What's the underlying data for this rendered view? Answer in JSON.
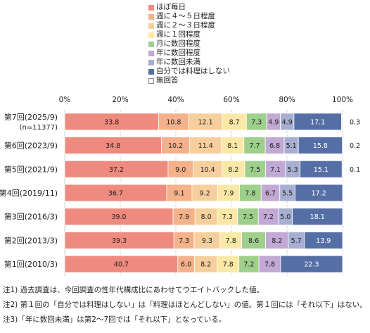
{
  "chart_data": {
    "type": "bar",
    "orientation": "horizontal",
    "stacked": true,
    "categories": [
      "第7回(2025/9)",
      "第6回(2023/9)",
      "第5回(2021/9)",
      "第4回(2019/11)",
      "第3回(2016/3)",
      "第2回(2013/3)",
      "第1回(2010/3)"
    ],
    "category_sublabels": [
      "(n=11377)",
      "",
      "",
      "",
      "",
      "",
      ""
    ],
    "series": [
      {
        "name": "ほぼ毎日",
        "color": "#ef8a7e",
        "values": [
          33.8,
          34.8,
          37.2,
          36.7,
          39.0,
          39.3,
          40.7
        ]
      },
      {
        "name": "週に４～５日程度",
        "color": "#f4b18a",
        "values": [
          10.8,
          10.2,
          9.0,
          9.1,
          7.9,
          7.3,
          6.0
        ]
      },
      {
        "name": "週に２～３日程度",
        "color": "#f7cf9c",
        "values": [
          12.1,
          11.4,
          10.4,
          9.2,
          8.0,
          9.3,
          8.2
        ]
      },
      {
        "name": "週に１回程度",
        "color": "#fce8a6",
        "values": [
          8.7,
          8.1,
          8.2,
          7.9,
          7.3,
          7.8,
          7.8
        ]
      },
      {
        "name": "月に数回程度",
        "color": "#9fcf8c",
        "values": [
          7.3,
          7.7,
          7.5,
          7.8,
          7.5,
          8.6,
          7.2
        ]
      },
      {
        "name": "年に数回程度",
        "color": "#c2a8d4",
        "values": [
          4.9,
          6.8,
          7.1,
          6.7,
          7.2,
          8.2,
          7.8
        ]
      },
      {
        "name": "年に数回未満",
        "color": "#a7aed2",
        "values": [
          4.9,
          5.1,
          5.3,
          5.5,
          5.0,
          5.7,
          null
        ]
      },
      {
        "name": "自分では料理はしない",
        "color": "#556fa6",
        "values": [
          17.1,
          15.8,
          15.1,
          17.2,
          18.1,
          13.9,
          22.3
        ]
      },
      {
        "name": "無回答",
        "color": "#ffffff",
        "values": [
          0.3,
          0.2,
          0.1,
          null,
          null,
          null,
          null
        ]
      }
    ],
    "xlim": [
      0,
      100
    ],
    "xticks": [
      "0%",
      "20%",
      "40%",
      "60%",
      "80%",
      "100%"
    ],
    "grid": true,
    "legend_position": "top"
  },
  "notes": [
    "注1) 過去調査は、今回調査の性年代構成比にあわせてウエイトバックした値。",
    "注2) 第１回の「自分では料理はしない」は「料理はほとんどしない」の値。第１回には「それ以下」はない。",
    "注3)「年に数回未満」は第2～7回では「それ以下」となっている。"
  ]
}
